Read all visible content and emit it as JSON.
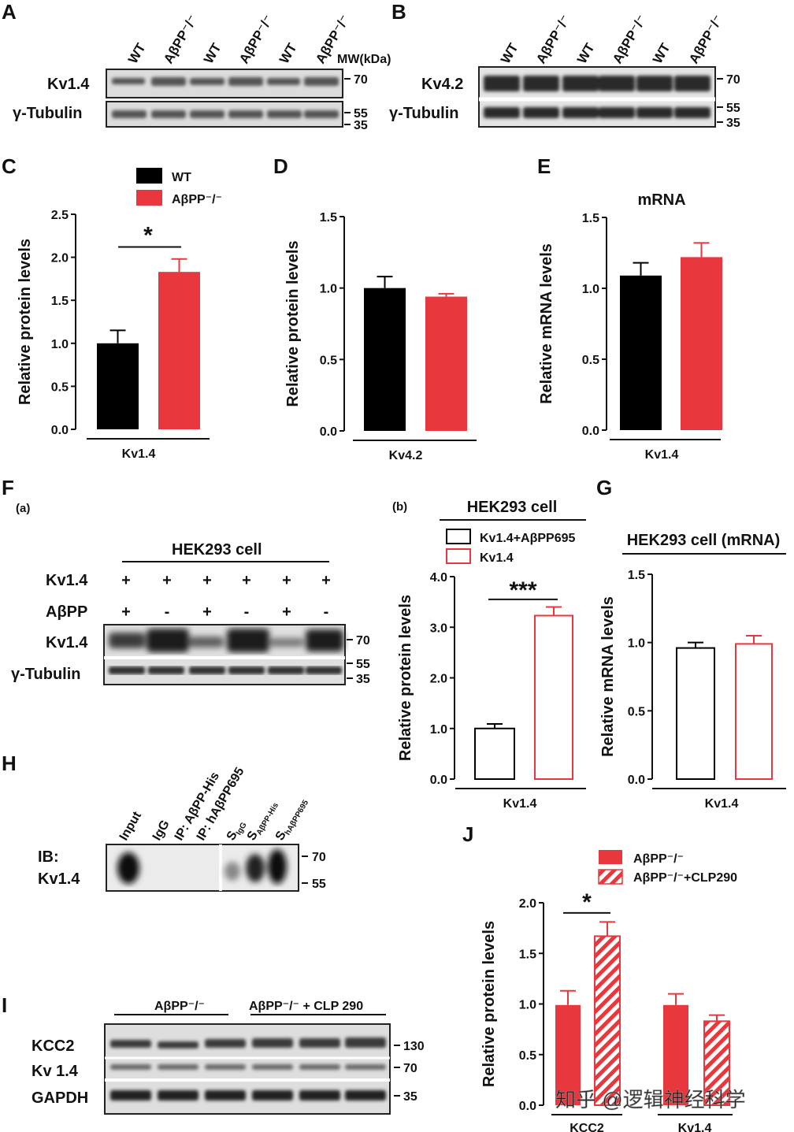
{
  "colors": {
    "black": "#000000",
    "red": "#e8383d",
    "blot_bg": "#d8d8d8",
    "band": "#333333"
  },
  "panel_letters": [
    "A",
    "B",
    "C",
    "D",
    "E",
    "F",
    "G",
    "H",
    "I",
    "J"
  ],
  "panel_A": {
    "lanes": [
      "WT",
      "AβPP⁻/⁻",
      "WT",
      "AβPP⁻/⁻",
      "WT",
      "AβPP⁻/⁻"
    ],
    "mw_label": "MW(kDa)",
    "rows": [
      "Kv1.4",
      "γ-Tubulin"
    ],
    "markers": [
      "70",
      "55",
      "35"
    ]
  },
  "panel_B": {
    "lanes": [
      "WT",
      "AβPP⁻/⁻",
      "WT",
      "AβPP⁻/⁻",
      "WT",
      "AβPP⁻/⁻"
    ],
    "rows": [
      "Kv4.2",
      "γ-Tubulin"
    ],
    "markers": [
      "70",
      "55",
      "35"
    ]
  },
  "panel_F": {
    "sub_a": "(a)",
    "sub_b": "(b)",
    "header": "HEK293 cell",
    "row_labels": [
      "Kv1.4",
      "AβPP"
    ],
    "kv_signs": [
      "+",
      "+",
      "+",
      "+",
      "+",
      "+"
    ],
    "app_signs": [
      "+",
      "-",
      "+",
      "-",
      "+",
      "-"
    ],
    "blot_rows": [
      "Kv1.4",
      "γ-Tubulin"
    ],
    "markers": [
      "70",
      "55",
      "35"
    ]
  },
  "panel_H": {
    "lanes": [
      "Input",
      "IgG",
      "IP: AβPP-His",
      "IP: hAβPP695"
    ],
    "s_lanes": [
      {
        "main": "S",
        "sub": "IgG"
      },
      {
        "main": "S",
        "sub": "AβPP-His"
      },
      {
        "main": "S",
        "sub": "hAβPP695"
      }
    ],
    "ib_label": "IB:",
    "ib_target": "Kv1.4",
    "markers": [
      "70",
      "55"
    ]
  },
  "panel_I": {
    "group1": "AβPP⁻/⁻",
    "group2": "AβPP⁻/⁻ + CLP 290",
    "rows": [
      "KCC2",
      "Kv 1.4",
      "GAPDH"
    ],
    "markers": [
      "130",
      "70",
      "35"
    ]
  },
  "chart_data": [
    {
      "panel": "C",
      "type": "bar",
      "title": "",
      "legend": [
        "WT",
        "AβPP⁻/⁻"
      ],
      "ylabel": "Relative protein levels",
      "xlabel": "Kv1.4",
      "ylim": [
        0,
        2.5
      ],
      "yticks": [
        "0.0",
        "0.5",
        "1.0",
        "1.5",
        "2.0",
        "2.5"
      ],
      "series": [
        {
          "name": "WT",
          "value": 1.0,
          "error": 0.15
        },
        {
          "name": "AβPP⁻/⁻",
          "value": 1.83,
          "error": 0.15
        }
      ],
      "significance": "*"
    },
    {
      "panel": "D",
      "type": "bar",
      "title": "",
      "ylabel": "Relative protein levels",
      "xlabel": "Kv4.2",
      "ylim": [
        0,
        1.5
      ],
      "yticks": [
        "0.0",
        "0.5",
        "1.0",
        "1.5"
      ],
      "series": [
        {
          "name": "WT",
          "value": 1.0,
          "error": 0.08
        },
        {
          "name": "AβPP⁻/⁻",
          "value": 0.94,
          "error": 0.02
        }
      ]
    },
    {
      "panel": "E",
      "type": "bar",
      "title": "mRNA",
      "ylabel": "Relative mRNA levels",
      "xlabel": "Kv1.4",
      "ylim": [
        0,
        1.5
      ],
      "yticks": [
        "0.0",
        "0.5",
        "1.0",
        "1.5"
      ],
      "series": [
        {
          "name": "WT",
          "value": 1.09,
          "error": 0.09
        },
        {
          "name": "AβPP⁻/⁻",
          "value": 1.22,
          "error": 0.1
        }
      ]
    },
    {
      "panel": "F(b)",
      "type": "bar",
      "title": "HEK293 cell",
      "legend": [
        "Kv1.4+AβPP695",
        "Kv1.4"
      ],
      "ylabel": "Relative protein levels",
      "xlabel": "Kv1.4",
      "ylim": [
        0,
        4.0
      ],
      "yticks": [
        "0.0",
        "1.0",
        "2.0",
        "3.0",
        "4.0"
      ],
      "series": [
        {
          "name": "Kv1.4+AβPP695",
          "value": 1.0,
          "error": 0.09
        },
        {
          "name": "Kv1.4",
          "value": 3.23,
          "error": 0.17
        }
      ],
      "significance": "***"
    },
    {
      "panel": "G",
      "type": "bar",
      "title": "HEK293 cell (mRNA)",
      "ylabel": "Relative mRNA levels",
      "xlabel": "Kv1.4",
      "ylim": [
        0,
        1.5
      ],
      "yticks": [
        "0.0",
        "0.5",
        "1.0",
        "1.5"
      ],
      "series": [
        {
          "name": "Kv1.4+AβPP695",
          "value": 0.96,
          "error": 0.04
        },
        {
          "name": "Kv1.4",
          "value": 0.99,
          "error": 0.06
        }
      ]
    },
    {
      "panel": "J",
      "type": "bar",
      "title": "",
      "legend": [
        "AβPP⁻/⁻",
        "AβPP⁻/⁻+CLP290"
      ],
      "ylabel": "Relative protein levels",
      "categories": [
        "KCC2",
        "Kv1.4"
      ],
      "ylim": [
        0,
        2.0
      ],
      "yticks": [
        "0.0",
        "0.5",
        "1.0",
        "1.5",
        "2.0"
      ],
      "series": [
        {
          "name": "AβPP⁻/⁻",
          "values": [
            0.99,
            0.99
          ],
          "errors": [
            0.14,
            0.11
          ]
        },
        {
          "name": "AβPP⁻/⁻+CLP290",
          "values": [
            1.67,
            0.83
          ],
          "errors": [
            0.14,
            0.06
          ]
        }
      ],
      "significance": "*"
    }
  ],
  "watermark": "知乎 @逻辑神经科学"
}
